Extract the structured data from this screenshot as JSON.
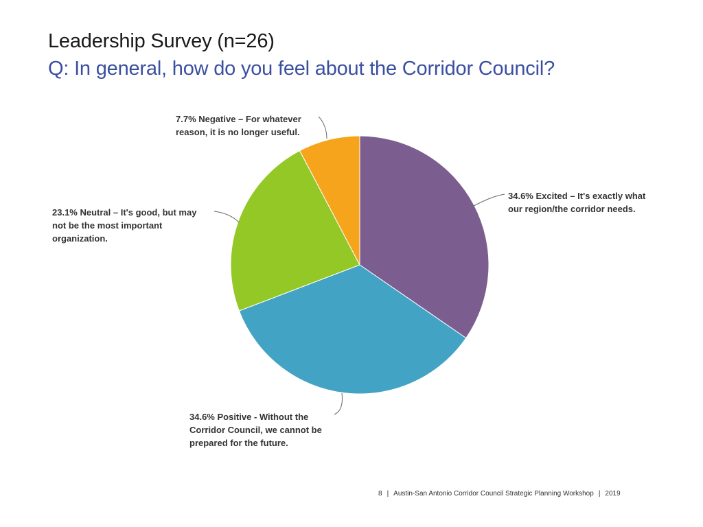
{
  "slide": {
    "title": "Leadership Survey (n=26)",
    "question": "Q: In general, how do you feel about the Corridor Council?"
  },
  "chart_data": {
    "type": "pie",
    "title": "",
    "slices": [
      {
        "value": 34.6,
        "color": "#7b5e8f",
        "label_lines": [
          "34.6% Excited – It's exactly what",
          "our region/the corridor needs."
        ]
      },
      {
        "value": 34.6,
        "color": "#42a3c4",
        "label_lines": [
          "34.6% Positive - Without the",
          "Corridor Council, we cannot be",
          "prepared for the future."
        ]
      },
      {
        "value": 23.1,
        "color": "#94c826",
        "label_lines": [
          "23.1% Neutral – It's good, but may",
          "not be the most important",
          "organization."
        ]
      },
      {
        "value": 7.7,
        "color": "#f5a41c",
        "label_lines": [
          "7.7% Negative – For whatever",
          "reason, it is no longer useful."
        ]
      }
    ],
    "start_angle": "12 o'clock",
    "direction": "clockwise",
    "legend": "none"
  },
  "footer": {
    "page": "8",
    "text": "Austin-San Antonio Corridor Council Strategic Planning Workshop",
    "year": "2019"
  }
}
